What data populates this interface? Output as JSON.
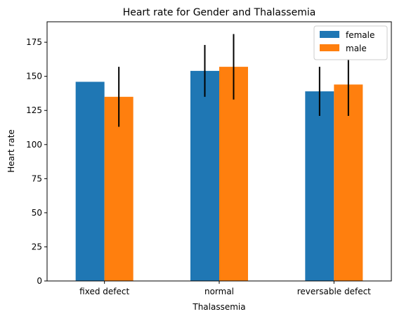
{
  "chart_data": {
    "type": "bar",
    "title": "Heart rate for Gender and Thalassemia",
    "xlabel": "Thalassemia",
    "ylabel": "Heart rate",
    "categories": [
      "fixed defect",
      "normal",
      "reversable defect"
    ],
    "ylim": [
      0,
      190
    ],
    "yticks": [
      0,
      25,
      50,
      75,
      100,
      125,
      150,
      175
    ],
    "grid": false,
    "legend_position": "top-right",
    "series": [
      {
        "name": "female",
        "color": "#1f77b4",
        "values": [
          146,
          154,
          139
        ],
        "errors": [
          0,
          19,
          18
        ]
      },
      {
        "name": "male",
        "color": "#ff7f0e",
        "values": [
          135,
          157,
          144
        ],
        "errors": [
          22,
          24,
          23
        ]
      }
    ]
  }
}
